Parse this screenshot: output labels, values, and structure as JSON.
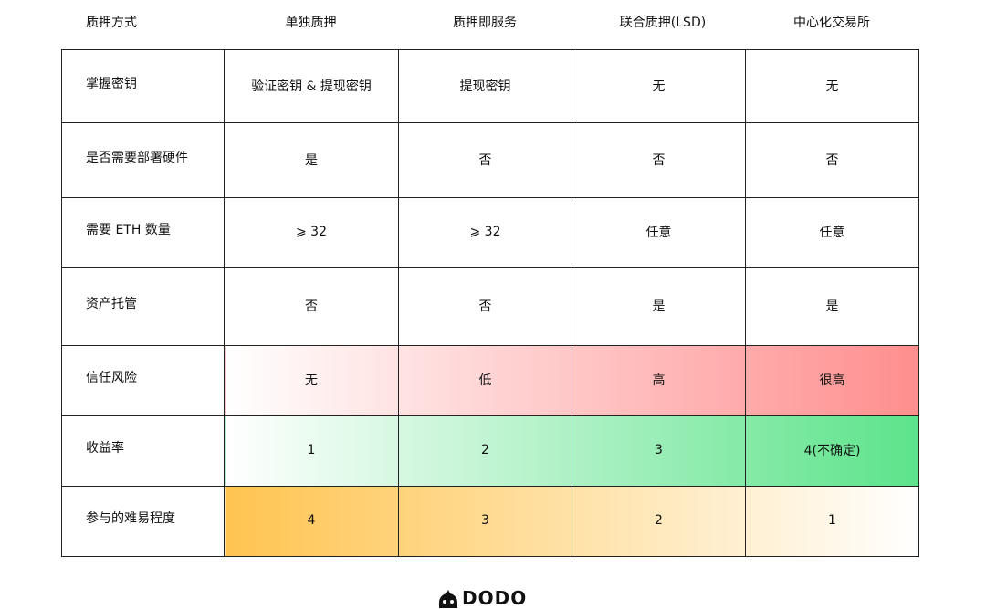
{
  "headers": [
    "质押方式",
    "单独质押",
    "质押即服务",
    "联合质押(LSD)",
    "中心化交易所"
  ],
  "rows": [
    {
      "label": "掌握密钥",
      "values": [
        "验证密钥 & 提现密钥",
        "提现密钥",
        "无",
        "无"
      ]
    },
    {
      "label": "是否需要部署硬件",
      "values": [
        "是",
        "否",
        "否",
        "否"
      ]
    },
    {
      "label": "需要 ETH 数量",
      "values": [
        "⩾ 32",
        "⩾ 32",
        "任意",
        "任意"
      ]
    },
    {
      "label": "资产托管",
      "values": [
        "否",
        "否",
        "是",
        "是"
      ]
    },
    {
      "label": "信任风险",
      "values": [
        "无",
        "低",
        "高",
        "很高"
      ]
    },
    {
      "label": "收益率",
      "values": [
        "1",
        "2",
        "3",
        "4(不确定)"
      ]
    },
    {
      "label": "参与的难易程度",
      "values": [
        "4",
        "3",
        "2",
        "1"
      ]
    }
  ],
  "colors": {
    "risk": "#ff8e8e",
    "yield": "#5ce38a",
    "difficulty": "#ffc450"
  },
  "logo": {
    "text": "DODO",
    "icon": "dodo-bird-icon"
  }
}
